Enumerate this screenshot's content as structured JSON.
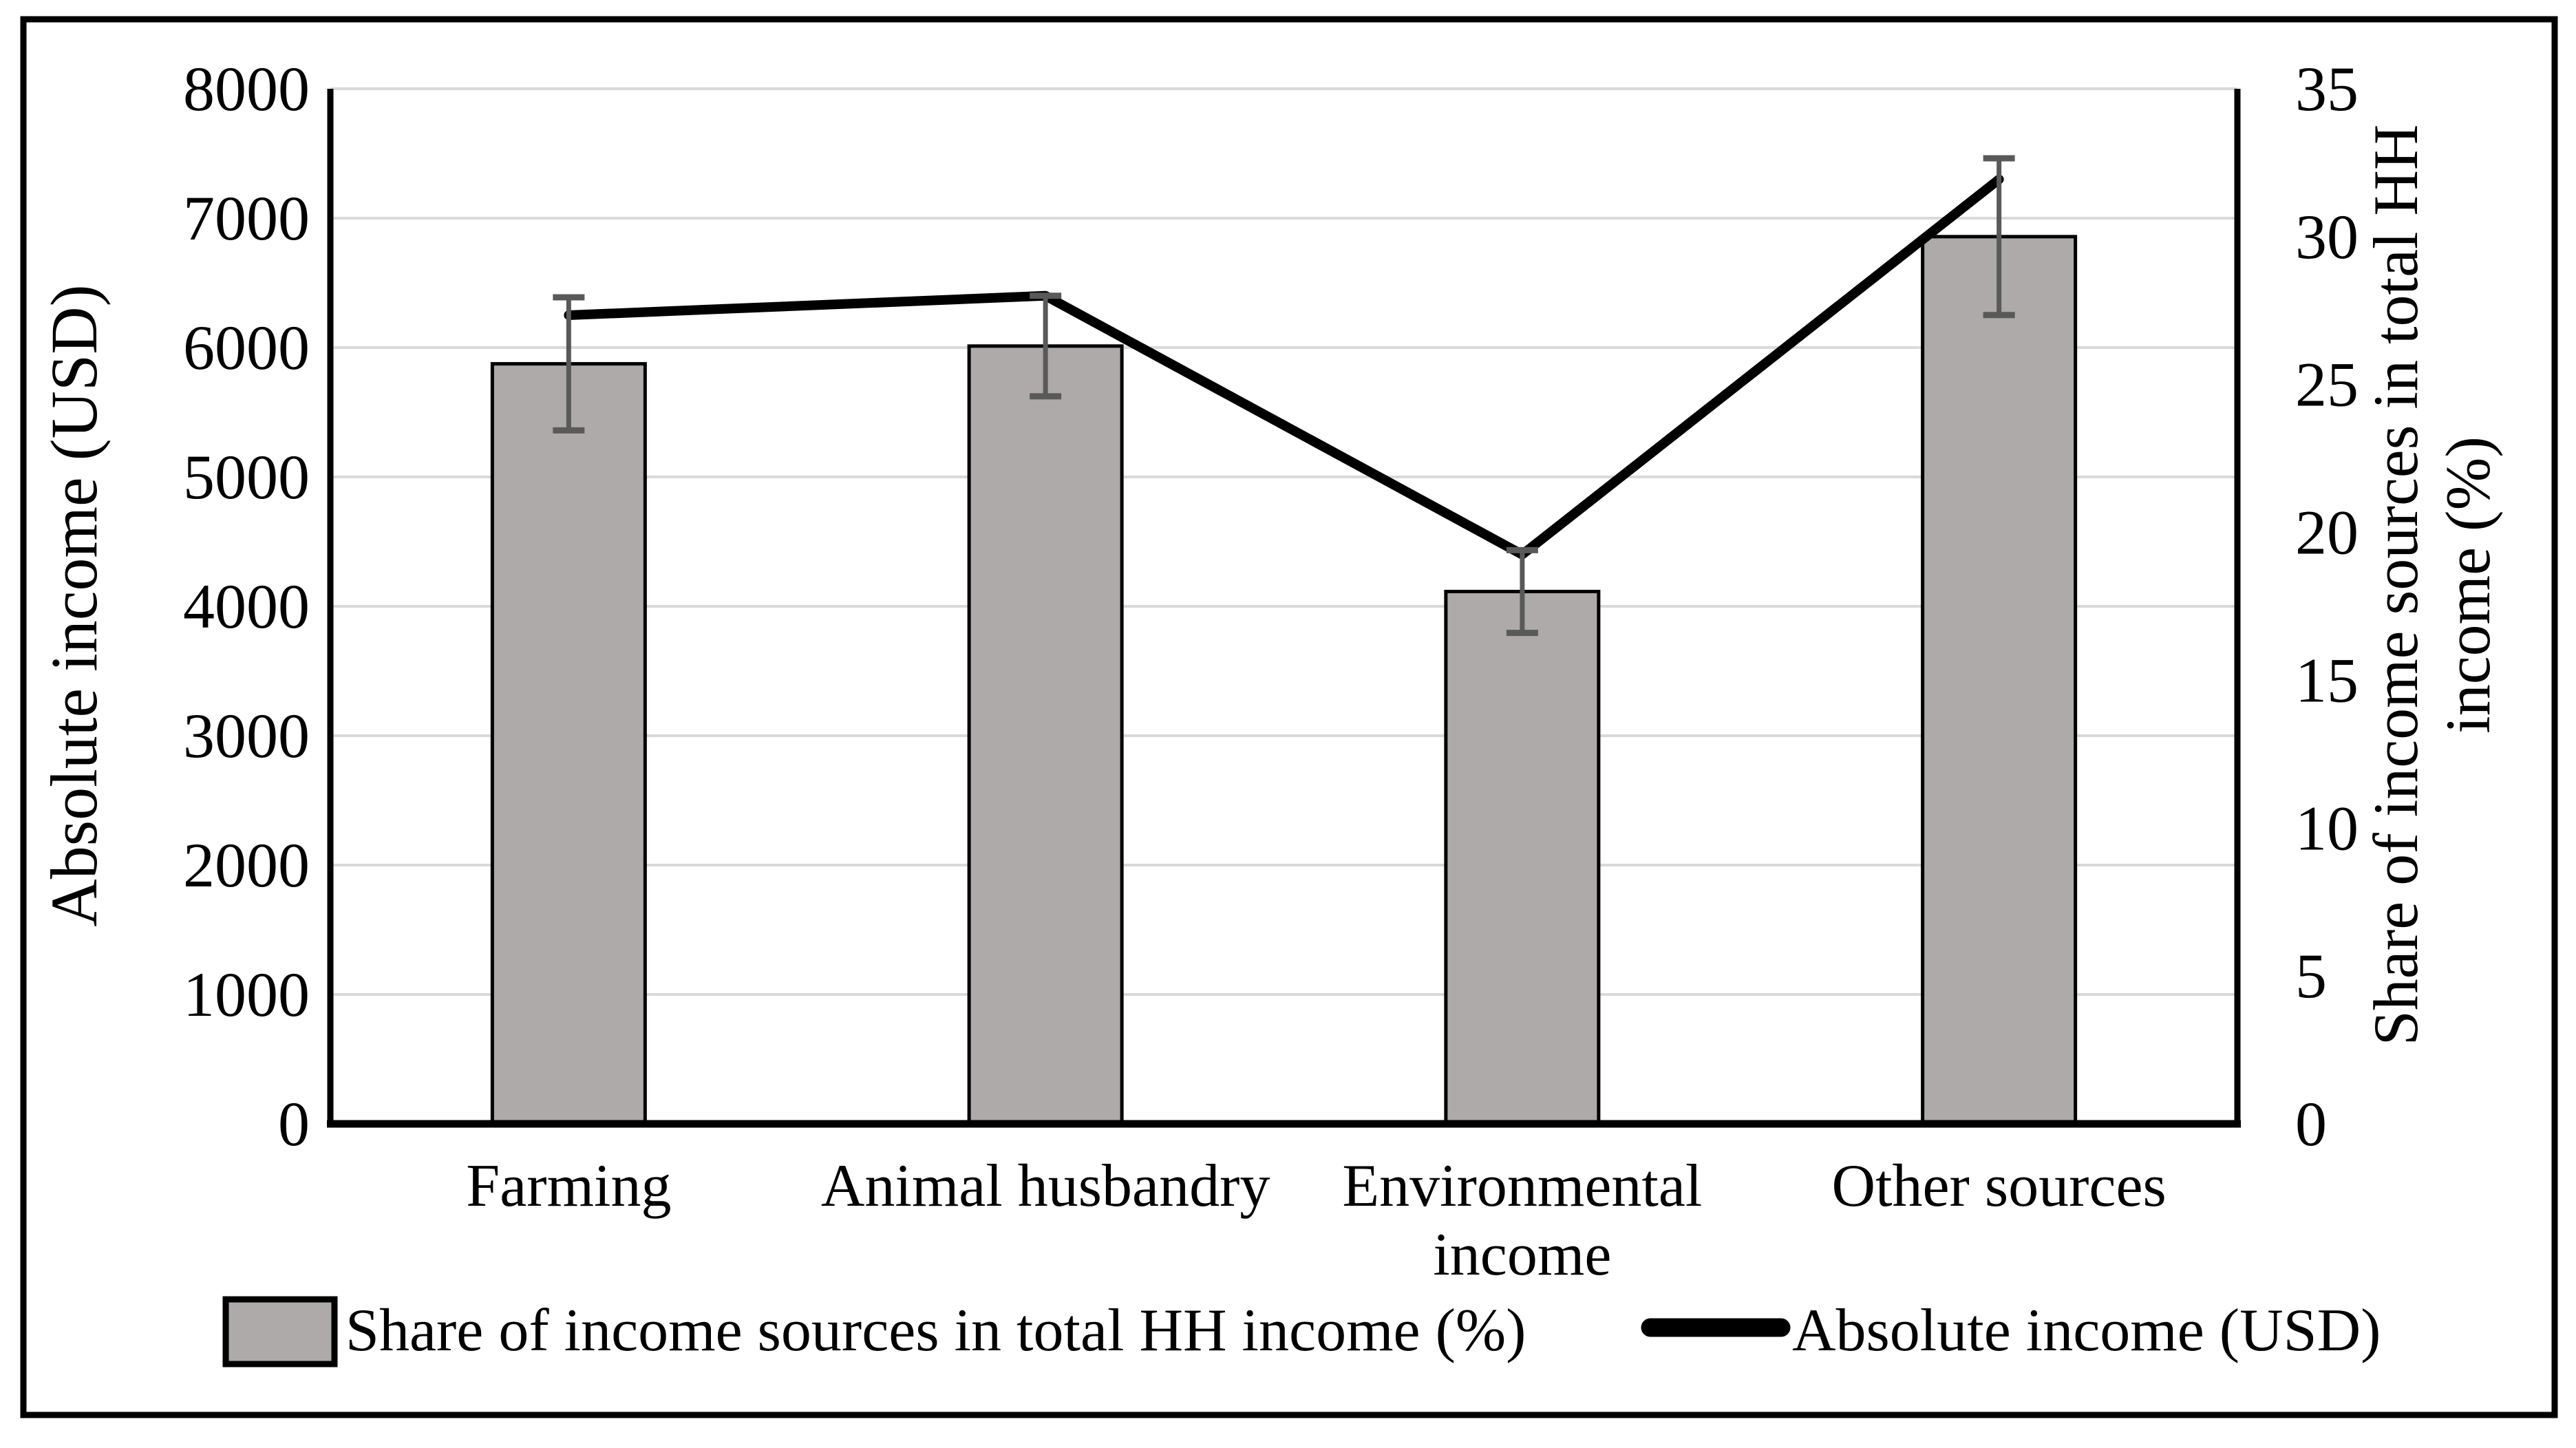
{
  "figure": {
    "background": "#ffffff",
    "border_color": "#000000"
  },
  "chart_data": {
    "type": "bar-line-combo",
    "categories": [
      "Farming",
      "Animal husbandry",
      "Environmental income",
      "Other sources"
    ],
    "category_label_lines": [
      [
        "Farming"
      ],
      [
        "Animal husbandry"
      ],
      [
        "Environmental",
        "income"
      ],
      [
        "Other sources"
      ]
    ],
    "series": [
      {
        "name": "Share of income sources in total HH income (%)",
        "type": "bar",
        "axis": "right",
        "values": [
          25.7,
          26.3,
          18.0,
          30.0
        ],
        "error_plus_minus": [
          2.25,
          1.7,
          1.4,
          2.65
        ],
        "fill_color": "#aeaaaa",
        "border_color": "#000000",
        "error_bar_color": "#595959"
      },
      {
        "name": "Absolute income (USD)",
        "type": "line",
        "axis": "left",
        "values": [
          6250,
          6400,
          4400,
          7300
        ],
        "color": "#000000"
      }
    ],
    "left_axis": {
      "title": "Absolute income (USD)",
      "min": 0,
      "max": 8000,
      "step": 1000,
      "tick_labels": [
        "0",
        "1000",
        "2000",
        "3000",
        "4000",
        "5000",
        "6000",
        "7000",
        "8000"
      ]
    },
    "right_axis": {
      "title_lines": [
        "Share of income sources in total HH",
        "income (%)"
      ],
      "min": 0,
      "max": 35,
      "step": 5,
      "tick_labels": [
        "0",
        "5",
        "10",
        "15",
        "20",
        "25",
        "30",
        "35"
      ]
    },
    "gridline_color": "#d9d9d9",
    "axis_line_color": "#000000",
    "legend": {
      "position": "bottom",
      "entries": [
        {
          "label": "Share of income sources in total HH income (%)",
          "marker": "bar-swatch"
        },
        {
          "label": "Absolute income (USD)",
          "marker": "line"
        }
      ]
    }
  }
}
